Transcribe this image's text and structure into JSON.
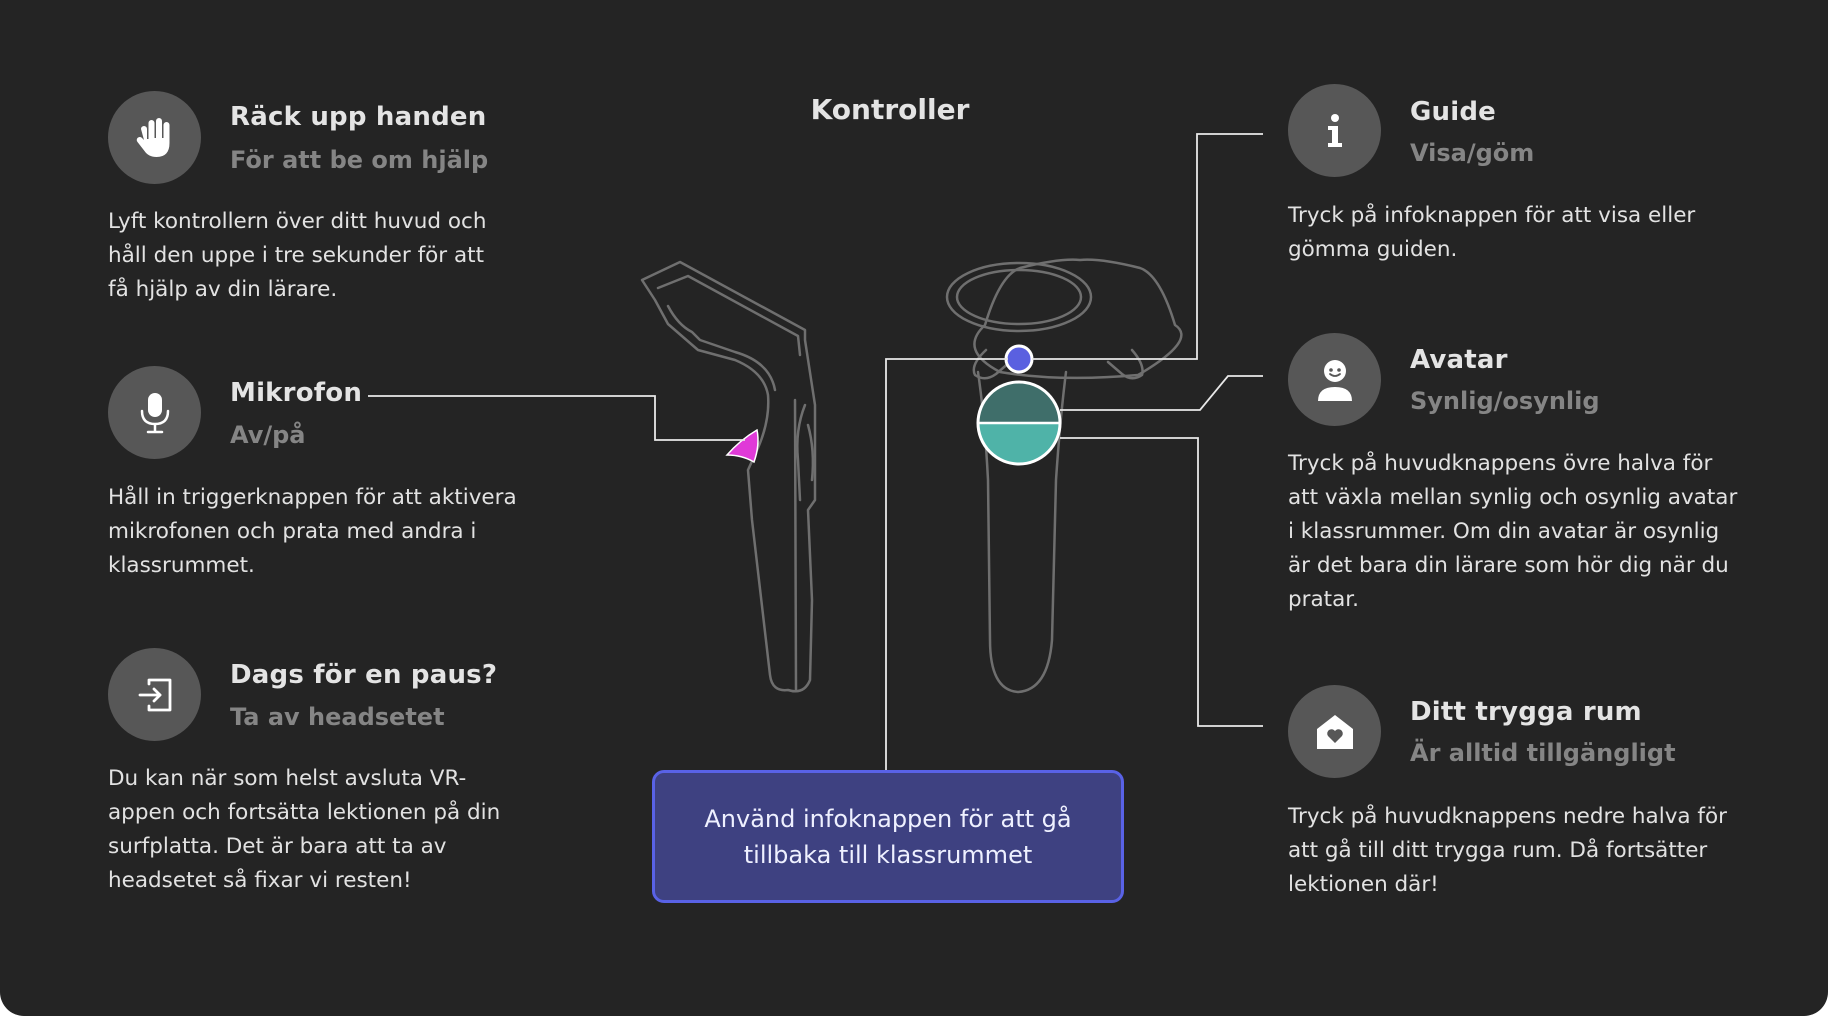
{
  "title": "Kontroller",
  "left_items": [
    {
      "icon": "raised-hand-icon",
      "title": "Räck upp handen",
      "subtitle": "För att be om hjälp",
      "description": "Lyft kontrollern över ditt huvud och håll den uppe i tre sekunder för att få hjälp av din lärare."
    },
    {
      "icon": "microphone-icon",
      "title": "Mikrofon",
      "subtitle": "Av/på",
      "description": "Håll in triggerknappen för att aktivera mikrofonen och prata med andra i klassrummet."
    },
    {
      "icon": "exit-icon",
      "title": "Dags för en paus?",
      "subtitle": "Ta av headsetet",
      "description": "Du kan när som helst avsluta VR-appen och fortsätta lektionen på din surfplatta. Det är bara att ta av headsetet så fixar vi resten!"
    }
  ],
  "right_items": [
    {
      "icon": "info-icon",
      "title": "Guide",
      "subtitle": "Visa/göm",
      "description": "Tryck på infoknappen för att visa eller gömma guiden."
    },
    {
      "icon": "avatar-icon",
      "title": "Avatar",
      "subtitle": "Synlig/osynlig",
      "description": "Tryck på huvudknappens övre halva för att växla mellan synlig och osynlig avatar i klassrummer. Om din avatar är osynlig är det bara din lärare som hör dig när du pratar."
    },
    {
      "icon": "safe-home-icon",
      "title": "Ditt trygga rum",
      "subtitle": "Är alltid tillgängligt",
      "description": "Tryck på huvudknappens nedre halva för att gå till ditt trygga rum. Då fortsätter lektionen där!"
    }
  ],
  "info_box": "Använd infoknappen för att gå tillbaka till klassrummet",
  "colors": {
    "background": "#242424",
    "icon_circle": "#575757",
    "trigger_highlight": "#e03ad8",
    "info_button": "#5a60e0",
    "main_button_top": "#3f6e6a",
    "main_button_bottom": "#4fb3a8",
    "info_box_fill": "#3e4181",
    "info_box_border": "#5962e6"
  }
}
